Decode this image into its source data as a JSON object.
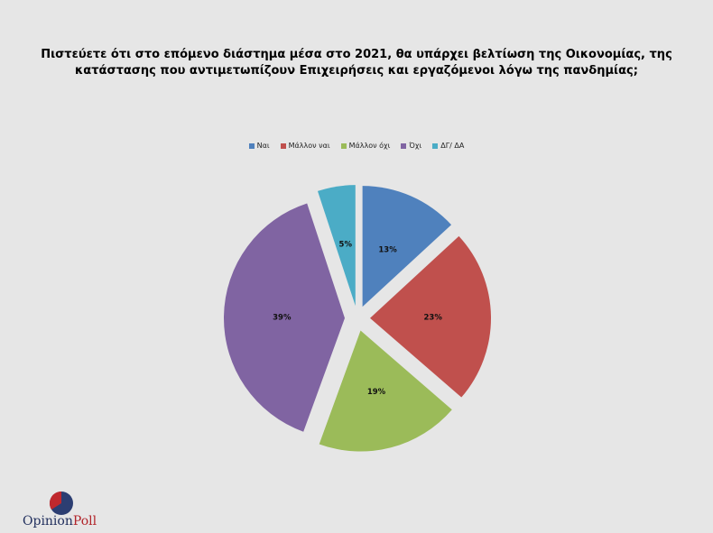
{
  "chart_data": {
    "type": "pie",
    "title_lines": [
      "Πιστεύετε ότι στο επόμενο διάστημα μέσα στο 2021, θα υπάρχει βελτίωση της Οικονομίας, της",
      "κατάστασης που αντιμετωπίζουν Επιχειρήσεις και εργαζόμενοι λόγω της πανδημίας;"
    ],
    "categories": [
      "Ναι",
      "Μάλλον ναι",
      "Μάλλον όχι",
      "Όχι",
      "ΔΓ/ ΔΑ"
    ],
    "values": [
      13,
      23,
      19,
      39,
      5
    ],
    "value_labels": [
      "13%",
      "23%",
      "19%",
      "39%",
      "5%"
    ],
    "colors": [
      "#4f81bd",
      "#c0504d",
      "#9bbb59",
      "#8064a2",
      "#4bacc6"
    ],
    "legend_position": "top",
    "exploded": true
  },
  "logo": {
    "text_part1": "Opinion",
    "text_part2": "Poll"
  }
}
